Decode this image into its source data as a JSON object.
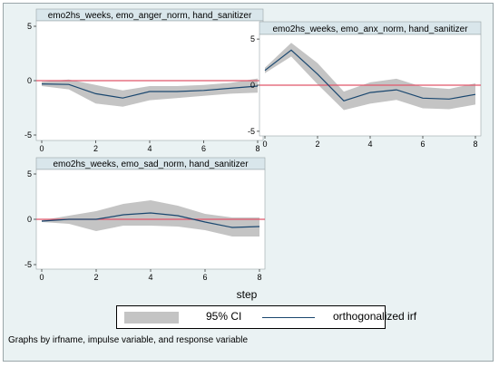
{
  "chart_data": [
    {
      "type": "line",
      "title": "emo2hs_weeks, emo_anger_norm, hand_sanitizer",
      "xlabel": "step",
      "x": [
        0,
        1,
        2,
        3,
        4,
        5,
        6,
        7,
        8
      ],
      "xticks": [
        0,
        2,
        4,
        6,
        8
      ],
      "yticks": [
        -5,
        0,
        5
      ],
      "xlim": [
        0,
        8
      ],
      "ylim": [
        -5.5,
        5.5
      ],
      "reference_line": 0,
      "series": [
        {
          "role": "ci_upper",
          "values": [
            -0.1,
            0.1,
            -0.4,
            -0.9,
            -0.5,
            -0.5,
            -0.4,
            -0.2,
            0.2
          ]
        },
        {
          "role": "ci_lower",
          "values": [
            -0.5,
            -0.8,
            -2.1,
            -2.4,
            -1.8,
            -1.6,
            -1.4,
            -1.2,
            -1.1
          ]
        },
        {
          "role": "irf",
          "values": [
            -0.3,
            -0.35,
            -1.2,
            -1.6,
            -1.0,
            -1.0,
            -0.9,
            -0.7,
            -0.5
          ]
        }
      ]
    },
    {
      "type": "line",
      "title": "emo2hs_weeks, emo_anx_norm, hand_sanitizer",
      "xlabel": "step",
      "x": [
        0,
        1,
        2,
        3,
        4,
        5,
        6,
        7,
        8
      ],
      "xticks": [
        0,
        2,
        4,
        6,
        8
      ],
      "yticks": [
        -5,
        0,
        5
      ],
      "xlim": [
        0,
        8
      ],
      "ylim": [
        -5.5,
        5.5
      ],
      "reference_line": 0,
      "series": [
        {
          "role": "ci_upper",
          "values": [
            1.9,
            4.6,
            2.4,
            -0.7,
            0.3,
            0.7,
            -0.2,
            -0.4,
            0.2
          ]
        },
        {
          "role": "ci_lower",
          "values": [
            1.3,
            3.1,
            0.1,
            -2.7,
            -2.0,
            -1.6,
            -2.5,
            -2.6,
            -2.1
          ]
        },
        {
          "role": "irf",
          "values": [
            1.6,
            3.8,
            1.2,
            -1.7,
            -0.8,
            -0.5,
            -1.4,
            -1.5,
            -1.0
          ]
        }
      ]
    },
    {
      "type": "line",
      "title": "emo2hs_weeks, emo_sad_norm, hand_sanitizer",
      "xlabel": "step",
      "x": [
        0,
        1,
        2,
        3,
        4,
        5,
        6,
        7,
        8
      ],
      "xticks": [
        0,
        2,
        4,
        6,
        8
      ],
      "yticks": [
        -5,
        0,
        5
      ],
      "xlim": [
        0,
        8
      ],
      "ylim": [
        -5.5,
        5.5
      ],
      "reference_line": 0,
      "series": [
        {
          "role": "ci_upper",
          "values": [
            -0.1,
            0.4,
            0.9,
            1.7,
            2.1,
            1.5,
            0.6,
            0.2,
            0.2
          ]
        },
        {
          "role": "ci_lower",
          "values": [
            -0.3,
            -0.5,
            -1.3,
            -0.7,
            -0.7,
            -0.8,
            -1.2,
            -1.9,
            -1.9
          ]
        },
        {
          "role": "irf",
          "values": [
            -0.2,
            0.0,
            0.0,
            0.5,
            0.7,
            0.4,
            -0.3,
            -0.9,
            -0.8
          ]
        }
      ]
    }
  ],
  "shared_xlabel": "step",
  "legend": {
    "ci_label": "95% CI",
    "irf_label": "orthogonalized irf"
  },
  "note": "Graphs by irfname, impulse variable, and response variable",
  "colors": {
    "background": "#eaf2f3",
    "plot_area": "#ffffff",
    "ci_band": "#c4c4c4",
    "irf_line": "#1a476f",
    "reference_line": "#e0566b"
  }
}
